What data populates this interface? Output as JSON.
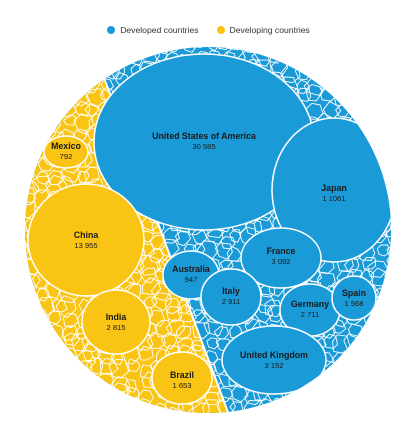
{
  "colors": {
    "developed": "#1a9bd7",
    "developing": "#f9c413",
    "border": "#ffffff"
  },
  "chart_data": {
    "type": "voronoi-treemap",
    "title": "",
    "legend": {
      "placement": "top",
      "items": [
        {
          "key": "developed",
          "label": "Developed countries"
        },
        {
          "key": "developing",
          "label": "Developing countries"
        }
      ]
    },
    "labeled_cells": [
      {
        "group": "developed",
        "name": "United States of America",
        "value": "30 985"
      },
      {
        "group": "developed",
        "name": "Japan",
        "value": "1 1061"
      },
      {
        "group": "developed",
        "name": "France",
        "value": "3 092"
      },
      {
        "group": "developed",
        "name": "Australia",
        "value": "947"
      },
      {
        "group": "developed",
        "name": "Italy",
        "value": "2 911"
      },
      {
        "group": "developed",
        "name": "Germany",
        "value": "2 711"
      },
      {
        "group": "developed",
        "name": "Spain",
        "value": "1 568"
      },
      {
        "group": "developed",
        "name": "United Kingdom",
        "value": "3 152"
      },
      {
        "group": "developing",
        "name": "Mexico",
        "value": "792"
      },
      {
        "group": "developing",
        "name": "China",
        "value": "13 955"
      },
      {
        "group": "developing",
        "name": "India",
        "value": "2 815"
      },
      {
        "group": "developing",
        "name": "Brazil",
        "value": "1 653"
      }
    ]
  }
}
